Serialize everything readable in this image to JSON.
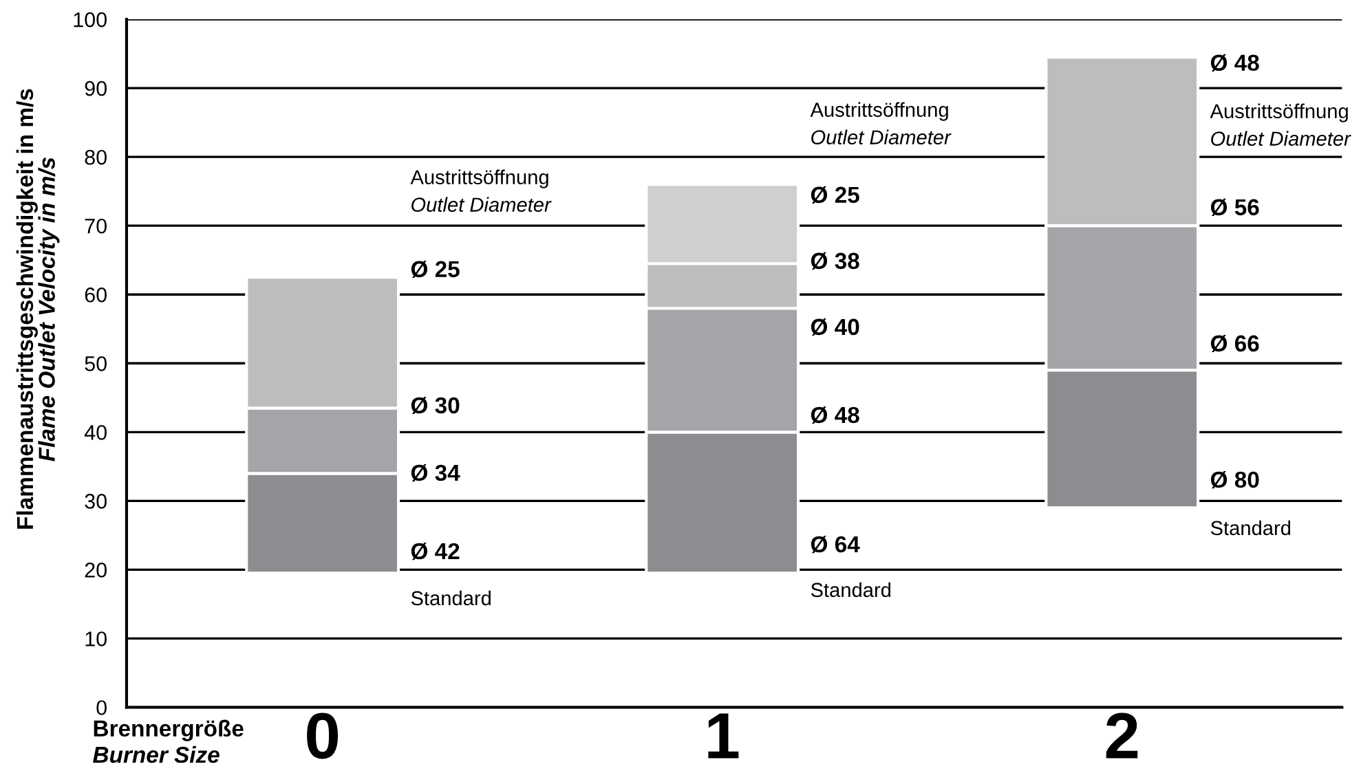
{
  "chart_data": {
    "type": "bar",
    "xlabel": "Brennergröße\nBurner Size",
    "ylabel": "Flammenaustrittsgeschwindigkeit in m/s\nFlame Outlet Velocity in m/s",
    "categories": [
      "0",
      "1",
      "2"
    ],
    "series": [
      {
        "color": "#8c8c91",
        "base": [
          19.5,
          19.5,
          29
        ],
        "values": [
          14.5,
          20.5,
          20
        ]
      },
      {
        "color": "#a5a5a9",
        "base": [
          34,
          40,
          49
        ],
        "values": [
          9.5,
          18,
          21
        ]
      },
      {
        "color": "#bdbdc0",
        "base": [
          43.5,
          58,
          70
        ],
        "values": [
          19,
          6.5,
          24.5
        ]
      },
      {
        "color": "#cfcfd1",
        "base": [
          null,
          64.5,
          null
        ],
        "values": [
          null,
          11.5,
          null
        ]
      }
    ],
    "ylim": [
      0,
      100
    ],
    "yticks": [
      0,
      10,
      20,
      30,
      40,
      50,
      60,
      70,
      80,
      90,
      100
    ],
    "grid": "y",
    "annotations": [
      "Ø 42",
      "Ø 34",
      "Ø 30",
      "Ø 25",
      "Standard",
      "Austrittsöffnung\nOutlet Diameter",
      "Ø 64",
      "Ø 48",
      "Ø 40",
      "Ø 38",
      "Ø 25",
      "Standard",
      "Austrittsöffnung\nOutlet Diameter",
      "Ø 80",
      "Ø 66",
      "Ø 56",
      "Ø 48",
      "Standard",
      "Austrittsöffnung\nOutlet Diameter"
    ]
  }
}
